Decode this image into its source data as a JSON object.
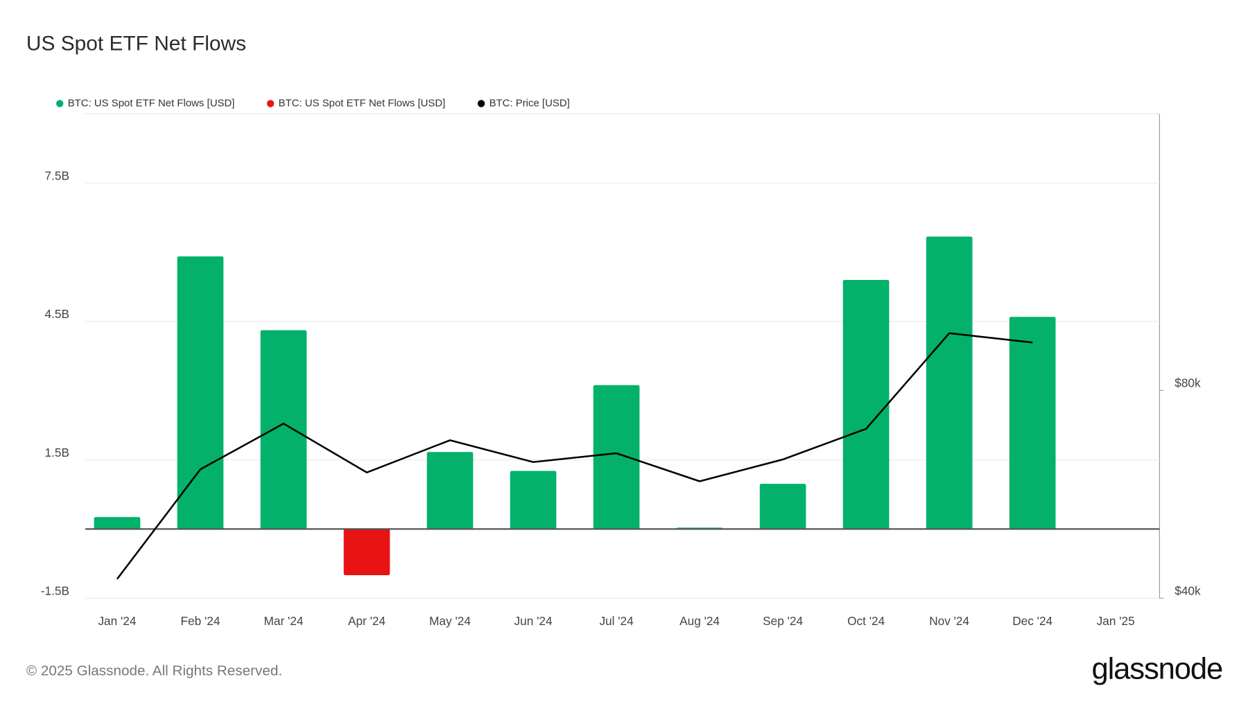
{
  "chart_data": {
    "type": "bar",
    "title": "US Spot ETF Net Flows",
    "categories": [
      "Jan '24",
      "Feb '24",
      "Mar '24",
      "Apr '24",
      "May '24",
      "Jun '24",
      "Jul '24",
      "Aug '24",
      "Sep '24",
      "Oct '24",
      "Nov '24",
      "Dec '24",
      "Jan '25"
    ],
    "series": [
      {
        "name": "BTC: US Spot ETF Net Flows [USD]",
        "color": "#03b16b",
        "values": [
          0.26,
          5.91,
          4.31,
          null,
          1.67,
          1.26,
          3.12,
          0.03,
          0.98,
          5.4,
          6.34,
          4.6,
          null
        ]
      },
      {
        "name": "BTC: US Spot ETF Net Flows [USD]",
        "color": "#e81414",
        "values": [
          null,
          null,
          null,
          -1.0,
          null,
          null,
          null,
          null,
          null,
          null,
          null,
          null,
          null
        ]
      },
      {
        "name": "BTC: Price [USD]",
        "color": "#000000",
        "type": "line",
        "axis": "y2",
        "values": [
          43700,
          64800,
          73600,
          64200,
          70400,
          66200,
          67900,
          62500,
          66700,
          72600,
          91000,
          89200,
          null
        ]
      }
    ],
    "ylim": [
      -1.5,
      9
    ],
    "yticks": [
      {
        "value": -1.5,
        "label": "-1.5B"
      },
      {
        "value": 1.5,
        "label": "1.5B"
      },
      {
        "value": 4.5,
        "label": "4.5B"
      },
      {
        "value": 7.5,
        "label": "7.5B"
      }
    ],
    "y2lim": [
      40000,
      133200
    ],
    "y2ticks": [
      {
        "value": 40000,
        "label": "$40k"
      },
      {
        "value": 80000,
        "label": "$80k"
      }
    ],
    "grid": true
  },
  "footer": {
    "copyright": "© 2025 Glassnode. All Rights Reserved.",
    "logo": "glassnode"
  }
}
